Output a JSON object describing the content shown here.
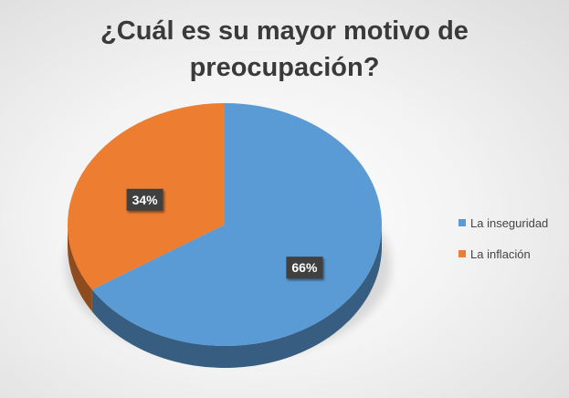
{
  "chart_data": {
    "type": "pie",
    "title": "¿Cuál es su mayor motivo de preocupación?",
    "title_lines": [
      "¿Cuál es su mayor motivo de",
      "preocupación?"
    ],
    "categories": [
      "La inseguridad",
      "La inflación"
    ],
    "values": [
      66,
      34
    ],
    "data_labels": [
      "66%",
      "34%"
    ],
    "colors": [
      "#5b9bd5",
      "#ed7d31"
    ],
    "legend_position": "right",
    "style": "3d"
  }
}
